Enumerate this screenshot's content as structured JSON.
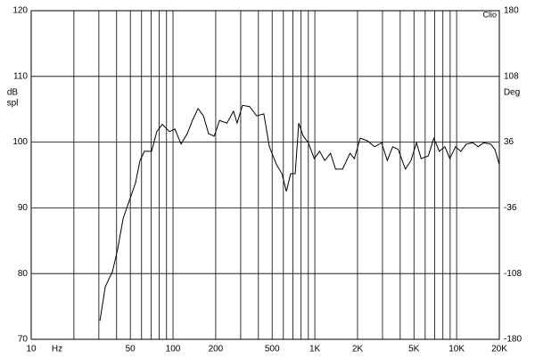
{
  "chart_data": {
    "type": "line",
    "y_label": [
      "dB",
      "spl"
    ],
    "y2_label": "Deg",
    "x_unit": "Hz",
    "brand": "Clio",
    "xscale": "log",
    "xlim": [
      10,
      20000
    ],
    "xticks": [
      10,
      50,
      100,
      200,
      500,
      {
        "value": 1000,
        "label": "1K"
      },
      {
        "value": 2000,
        "label": "2K"
      },
      {
        "value": 5000,
        "label": "5K"
      },
      {
        "value": 10000,
        "label": "10K"
      },
      {
        "value": 20000,
        "label": "20K"
      }
    ],
    "xminor": [
      20,
      30,
      40,
      60,
      70,
      80,
      90,
      300,
      400,
      600,
      700,
      800,
      900,
      3000,
      4000,
      6000,
      7000,
      8000,
      9000
    ],
    "ylim": [
      70,
      120
    ],
    "yticks": [
      70,
      80,
      90,
      100,
      110,
      120
    ],
    "y2lim": [
      -180,
      180
    ],
    "y2ticks": [
      -180,
      -108,
      -36,
      36,
      108,
      180
    ],
    "grid": true,
    "x": [
      30.5,
      33.3,
      37.4,
      40.7,
      44.5,
      49.2,
      54.4,
      58.5,
      62.9,
      70.6,
      76.8,
      84,
      94.4,
      103,
      114,
      126,
      137,
      150,
      164,
      178,
      195,
      213,
      240,
      267,
      283,
      309,
      347,
      389,
      437,
      478,
      536,
      586,
      630,
      675,
      727,
      770,
      825,
      900,
      990,
      1080,
      1175,
      1290,
      1400,
      1570,
      1770,
      1900,
      2090,
      2350,
      2640,
      2960,
      3240,
      3540,
      3870,
      4350,
      4760,
      5210,
      5620,
      6310,
      6900,
      7550,
      8260,
      8950,
      9820,
      10700,
      11700,
      13000,
      14200,
      15500,
      17400,
      18600,
      20000
    ],
    "series": [
      {
        "color": "#000000",
        "values": [
          72.8,
          78,
          80.3,
          83.7,
          88.4,
          91.1,
          93.8,
          97.2,
          98.6,
          98.6,
          101.6,
          102.7,
          101.6,
          102,
          99.7,
          101.3,
          103.3,
          105.1,
          104,
          101.3,
          100.9,
          103.3,
          102.9,
          104.7,
          102.9,
          105.6,
          105.4,
          104,
          104.3,
          99.3,
          96.6,
          95.2,
          92.5,
          95.2,
          95.2,
          102.9,
          101,
          99.9,
          97.5,
          98.6,
          97.2,
          98.3,
          95.9,
          95.9,
          98.3,
          97.5,
          100.6,
          100.2,
          99.3,
          99.9,
          97.2,
          99.3,
          98.9,
          95.9,
          97.2,
          99.9,
          97.5,
          97.9,
          100.6,
          98.6,
          99.3,
          97.5,
          99.3,
          98.6,
          99.7,
          99.9,
          99.3,
          99.9,
          99.7,
          98.9,
          96.6
        ]
      }
    ]
  }
}
